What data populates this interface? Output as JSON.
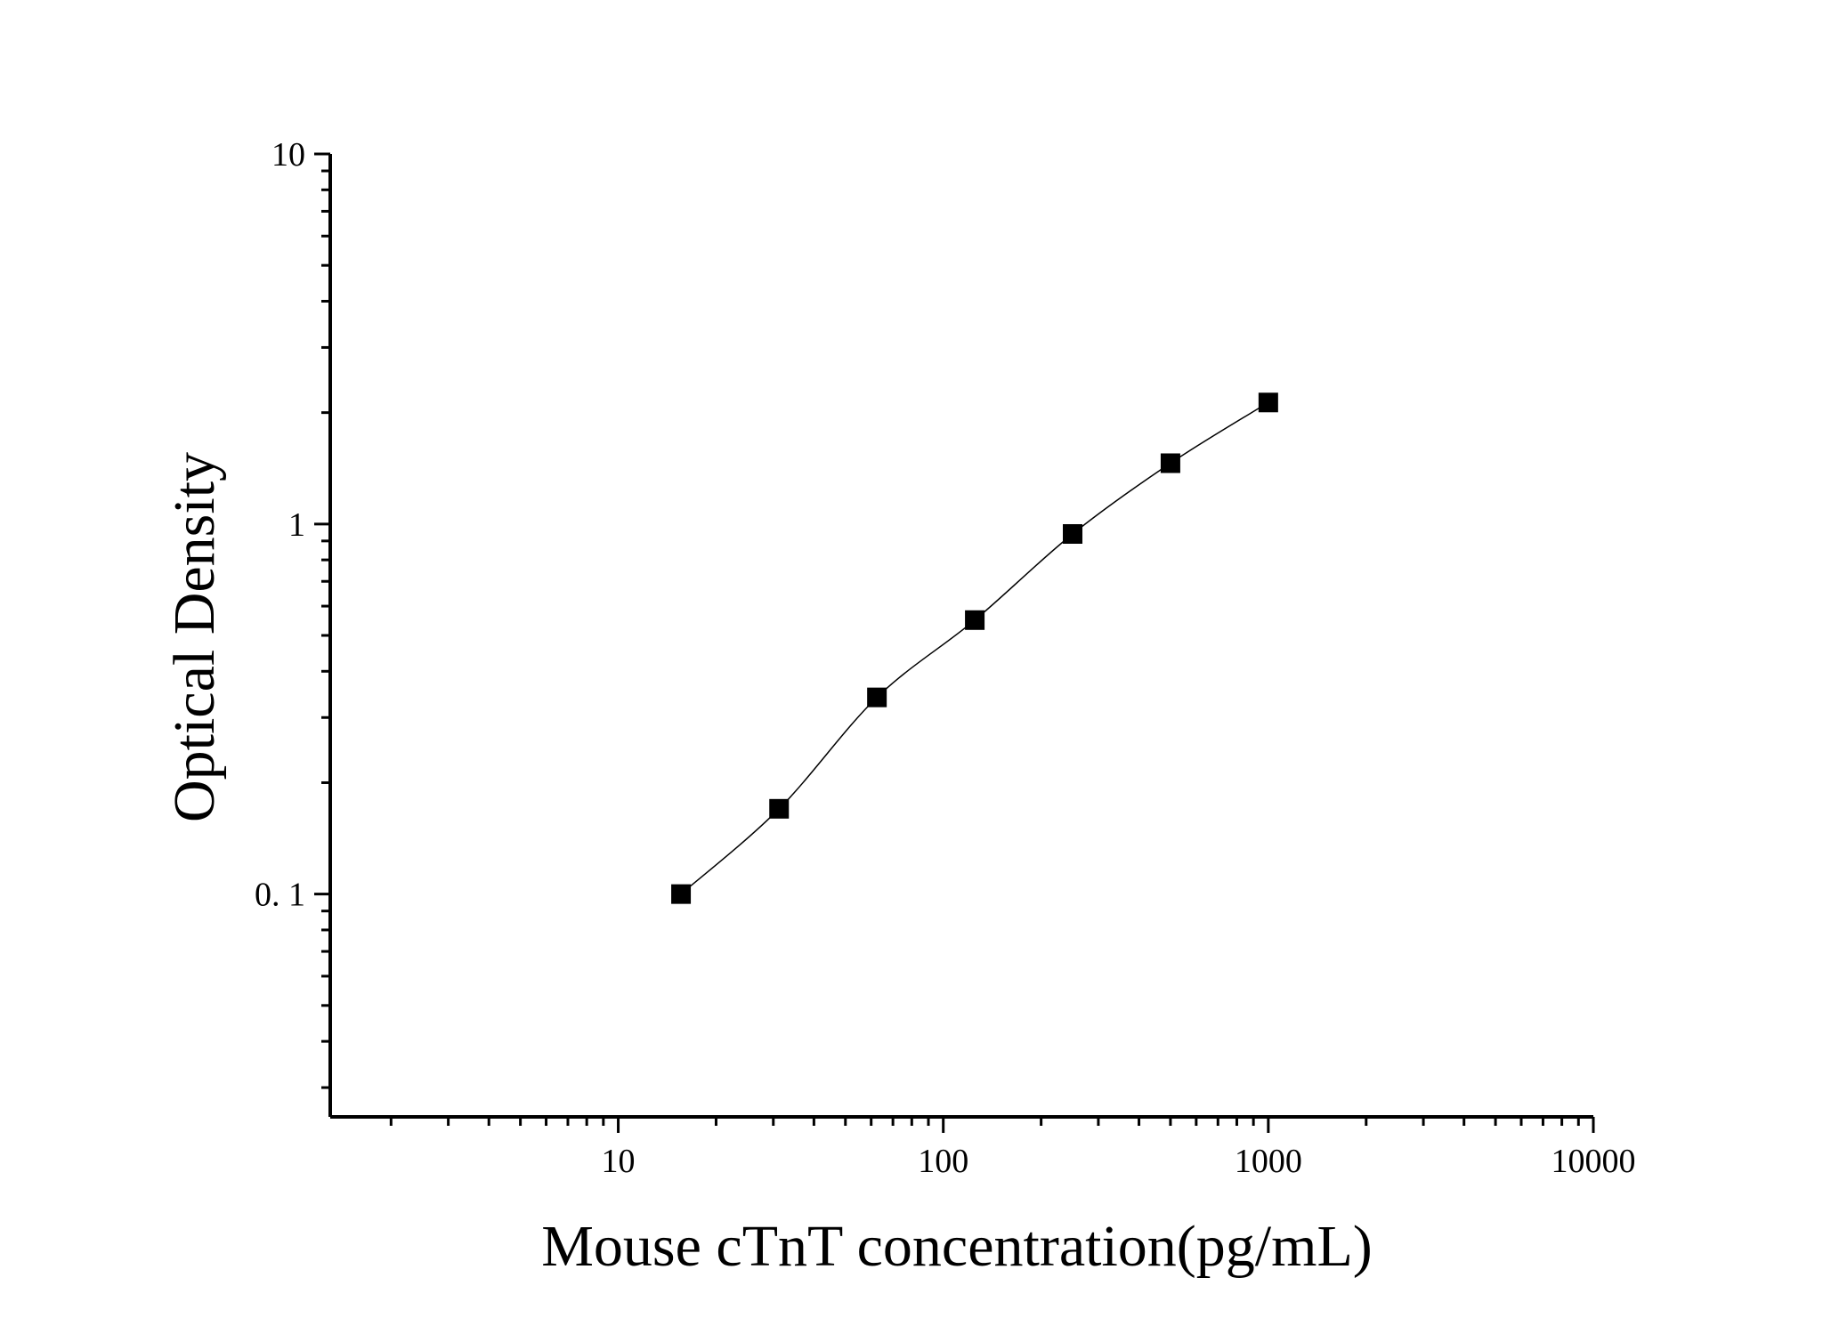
{
  "chart_data": {
    "type": "scatter",
    "xlabel": "Mouse cTnT concentration(pg/mL)",
    "ylabel": "Optical Density",
    "x_scale": "log",
    "y_scale": "log",
    "xlim": [
      1.3,
      10000
    ],
    "ylim": [
      0.025,
      10
    ],
    "x_tick_labels": [
      "10",
      "100",
      "1000",
      "10000"
    ],
    "y_tick_labels": [
      "0. 1",
      "1",
      "10"
    ],
    "grid": false,
    "marker_color": "#000000",
    "line_color": "#000000",
    "series": [
      {
        "x": [
          15.6,
          31.25,
          62.5,
          125,
          250,
          500,
          1000
        ],
        "y": [
          0.1,
          0.17,
          0.34,
          0.55,
          0.94,
          1.46,
          2.13
        ]
      }
    ]
  }
}
